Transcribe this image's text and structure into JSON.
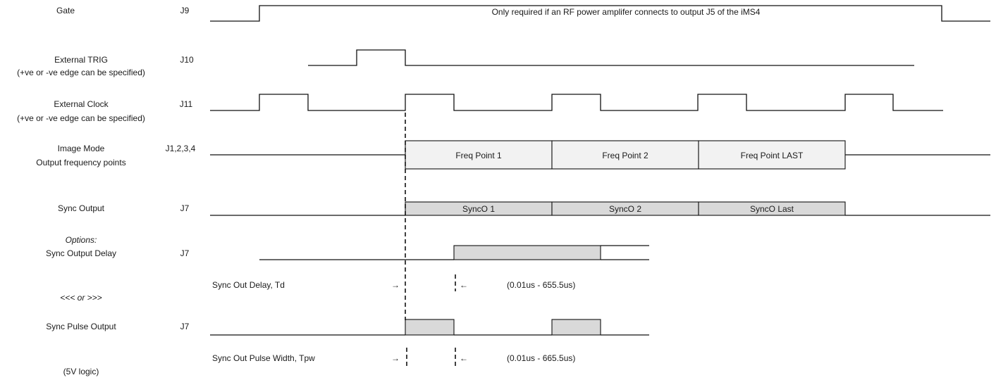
{
  "signals": [
    {
      "id": "gate",
      "label": [
        "Gate"
      ],
      "pin": "J9",
      "note": "Only required if an RF power amplifer connects to output J5 of the iMS4"
    },
    {
      "id": "trig",
      "label": [
        "External TRIG",
        "(+ve or -ve edge can be specified)"
      ],
      "pin": "J10"
    },
    {
      "id": "clock",
      "label": [
        "External Clock",
        "(+ve or -ve edge can be specified)"
      ],
      "pin": "J11"
    },
    {
      "id": "image",
      "label": [
        "Image Mode",
        "Output frequency points"
      ],
      "pin": "J1,2,3,4",
      "segments": [
        "Freq Point 1",
        "Freq Point 2",
        "Freq Point LAST"
      ]
    },
    {
      "id": "sync",
      "label": [
        "Sync Output"
      ],
      "pin": "J7",
      "segments": [
        "SyncO 1",
        "SyncO 2",
        "SyncO Last"
      ]
    },
    {
      "id": "delay",
      "label": [
        "Options:",
        "Sync Output Delay"
      ],
      "pin": "J7"
    },
    {
      "id": "pulse",
      "label": [
        "Sync Pulse Output"
      ],
      "pin": "J7"
    }
  ],
  "annotations": {
    "delay_label": "Sync Out Delay,  Td",
    "delay_range": "(0.01us - 655.5us)",
    "pulse_label": "Sync Out Pulse Width, Tpw",
    "pulse_range": "(0.01us - 665.5us)",
    "or_text": "<<< or >>>",
    "logic_note": "(5V logic)",
    "arrow_right": "→",
    "arrow_left": "←"
  }
}
